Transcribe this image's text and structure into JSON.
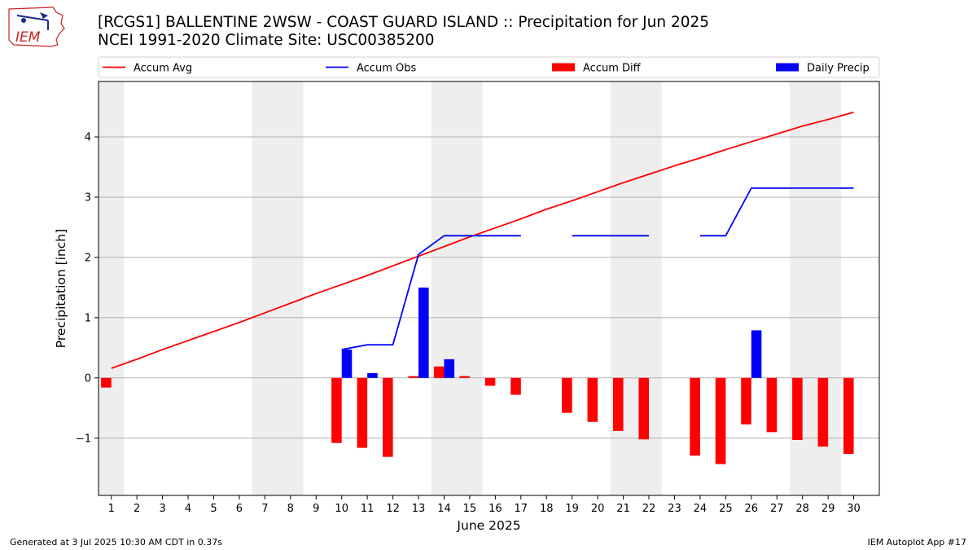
{
  "header": {
    "title_line1": "[RCGS1] BALLENTINE 2WSW - COAST GUARD ISLAND :: Precipitation for Jun 2025",
    "title_line2": "NCEI 1991-2020 Climate Site: USC00385200",
    "logo_text": "IEM"
  },
  "footer": {
    "generated": "Generated at 3 Jul 2025 10:30 AM CDT in 0.37s",
    "app": "IEM Autoplot App #17"
  },
  "colors": {
    "avg": "#ff0000",
    "obs": "#0000ff",
    "diff": "#ff0000",
    "daily": "#0000ff",
    "weekend": "#eeeeee",
    "grid": "#b0b0b0"
  },
  "chart_data": {
    "type": "bar+line",
    "title": "[RCGS1] BALLENTINE 2WSW - COAST GUARD ISLAND :: Precipitation for Jun 2025",
    "xlabel": "June 2025",
    "ylabel": "Precipitation [inch]",
    "xlim": [
      0.5,
      31.0
    ],
    "ylim": [
      -1.95,
      4.92
    ],
    "xticks": [
      1,
      2,
      3,
      4,
      5,
      6,
      7,
      8,
      9,
      10,
      11,
      12,
      13,
      14,
      15,
      16,
      17,
      18,
      19,
      20,
      21,
      22,
      23,
      24,
      25,
      26,
      27,
      28,
      29,
      30
    ],
    "yticks": [
      -1,
      0,
      1,
      2,
      3,
      4
    ],
    "ytick_labels": [
      "−1",
      "0",
      "1",
      "2",
      "3",
      "4"
    ],
    "grid": "y",
    "legend": {
      "placement": "top, outside",
      "items": [
        {
          "label": "Accum Avg",
          "kind": "line",
          "color": "#ff0000"
        },
        {
          "label": "Accum Obs",
          "kind": "line",
          "color": "#0000ff"
        },
        {
          "label": "Accum Diff",
          "kind": "bar",
          "color": "#ff0000"
        },
        {
          "label": "Daily Precip",
          "kind": "bar",
          "color": "#0000ff"
        }
      ]
    },
    "weekend_days": [
      1,
      7,
      8,
      14,
      15,
      21,
      22,
      28,
      29
    ],
    "days": [
      1,
      2,
      3,
      4,
      5,
      6,
      7,
      8,
      9,
      10,
      11,
      12,
      13,
      14,
      15,
      16,
      17,
      18,
      19,
      20,
      21,
      22,
      23,
      24,
      25,
      26,
      27,
      28,
      29,
      30
    ],
    "series": [
      {
        "name": "Accum Avg",
        "type": "line",
        "values": [
          0.16,
          0.31,
          0.47,
          0.62,
          0.77,
          0.92,
          1.08,
          1.24,
          1.4,
          1.55,
          1.7,
          1.86,
          2.02,
          2.18,
          2.34,
          2.49,
          2.64,
          2.8,
          2.94,
          3.09,
          3.24,
          3.38,
          3.52,
          3.65,
          3.79,
          3.92,
          4.05,
          4.18,
          4.29,
          4.41
        ]
      },
      {
        "name": "Accum Obs",
        "type": "line",
        "values": [
          null,
          null,
          null,
          null,
          null,
          null,
          null,
          null,
          null,
          0.47,
          0.55,
          0.55,
          2.05,
          2.36,
          2.36,
          2.36,
          2.36,
          null,
          2.36,
          2.36,
          2.36,
          2.36,
          null,
          2.36,
          2.36,
          3.15,
          3.15,
          3.15,
          3.15,
          3.15
        ]
      },
      {
        "name": "Accum Diff",
        "type": "bar",
        "values": [
          -0.16,
          null,
          null,
          null,
          null,
          null,
          null,
          null,
          null,
          -1.08,
          -1.16,
          -1.31,
          0.03,
          0.19,
          0.03,
          -0.13,
          -0.28,
          null,
          -0.58,
          -0.73,
          -0.88,
          -1.02,
          null,
          -1.29,
          -1.43,
          -0.77,
          -0.9,
          -1.03,
          -1.14,
          -1.26
        ]
      },
      {
        "name": "Daily Precip",
        "type": "bar",
        "values": [
          null,
          null,
          null,
          null,
          null,
          null,
          null,
          null,
          null,
          0.47,
          0.08,
          0.0,
          1.5,
          0.31,
          0.0,
          0.0,
          0.0,
          null,
          0.0,
          0.0,
          0.0,
          0.0,
          null,
          0.0,
          0.0,
          0.79,
          0.0,
          0.0,
          0.0,
          0.0
        ]
      }
    ]
  }
}
